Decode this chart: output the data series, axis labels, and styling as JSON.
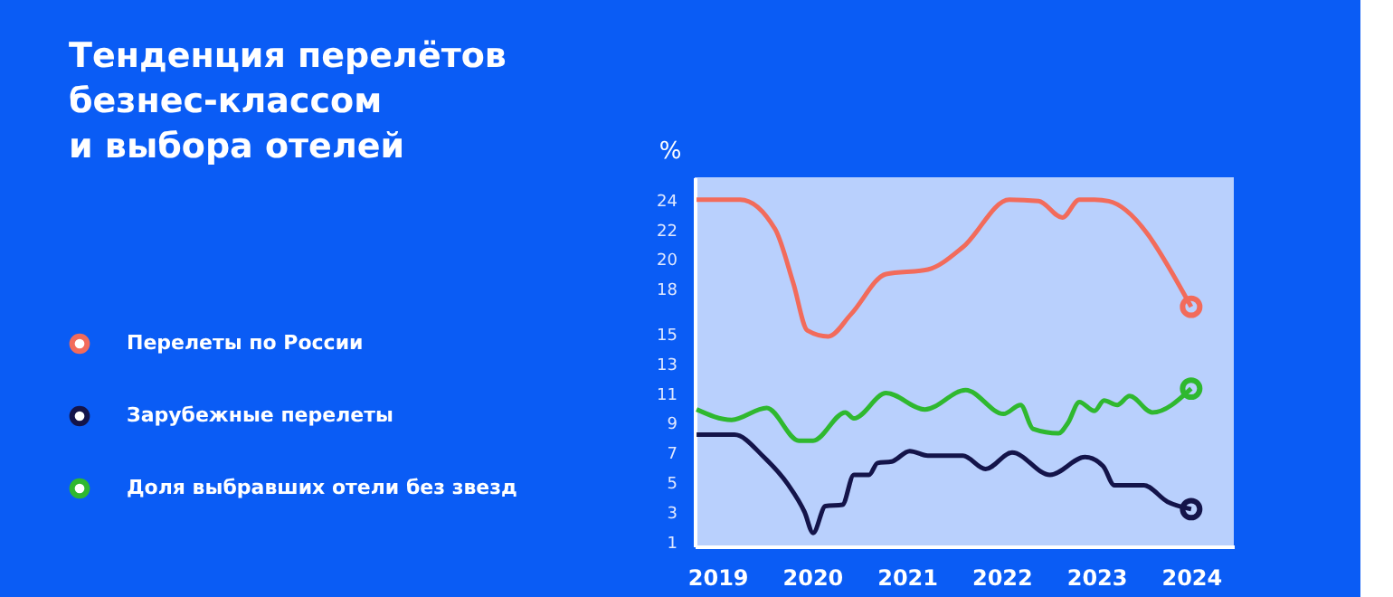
{
  "chart_data": {
    "type": "line",
    "title": [
      "Тенденция перелётов",
      "безнес-классом",
      "и выбора отелей"
    ],
    "ylabel": "%",
    "xlim": [
      2018.76,
      2024.45
    ],
    "xticks": [
      2019,
      2020,
      2021,
      2022,
      2023,
      2024
    ],
    "ylim": [
      0.7,
      25.5
    ],
    "yticks": [
      1,
      3,
      5,
      7,
      9,
      11,
      13,
      15,
      18,
      20,
      22,
      24
    ],
    "grid": false,
    "legend": "left",
    "line_style": "solid",
    "series": [
      {
        "name": "Перелеты по России",
        "color": "#f26b5b",
        "x": [
          2018.78,
          2019.24,
          2019.61,
          2019.8,
          2019.95,
          2020.17,
          2020.41,
          2020.78,
          2021.22,
          2021.59,
          2022.08,
          2022.39,
          2022.64,
          2022.82,
          2022.98,
          2023.13,
          2024
        ],
        "values": [
          24,
          24,
          22,
          18.4,
          15.2,
          14.8,
          16.3,
          19,
          19.3,
          20.8,
          24,
          23.9,
          22.8,
          24,
          24,
          23.9,
          16.8
        ]
      },
      {
        "name": "Зарубежные перелеты",
        "color": "#14144a",
        "x": [
          2018.78,
          2019.18,
          2019.49,
          2019.74,
          2019.92,
          2020.01,
          2020.14,
          2020.32,
          2020.44,
          2020.6,
          2020.69,
          2020.84,
          2021.03,
          2021.22,
          2021.59,
          2021.83,
          2022.11,
          2022.51,
          2022.88,
          2023.07,
          2023.19,
          2023.5,
          2023.75,
          2024
        ],
        "values": [
          8.2,
          8.2,
          6.7,
          4.9,
          3,
          1.6,
          3.4,
          3.5,
          5.5,
          5.5,
          6.3,
          6.4,
          7.1,
          6.8,
          6.8,
          5.9,
          7,
          5.5,
          6.7,
          6.1,
          4.8,
          4.8,
          3.7,
          3.2
        ]
      },
      {
        "name": "Доля выбравших отели без звезд",
        "color": "#2fb82f",
        "x": [
          2018.78,
          2019.15,
          2019.52,
          2019.86,
          2020.01,
          2020.35,
          2020.44,
          2020.78,
          2021.19,
          2021.62,
          2022.02,
          2022.2,
          2022.33,
          2022.6,
          2022.7,
          2022.82,
          2022.98,
          2023.08,
          2023.22,
          2023.35,
          2023.59,
          2024
        ],
        "values": [
          9.9,
          9.2,
          10,
          7.8,
          7.8,
          9.7,
          9.3,
          11,
          9.9,
          11.2,
          9.6,
          10.2,
          8.6,
          8.3,
          9,
          10.4,
          9.8,
          10.5,
          10.2,
          10.8,
          9.7,
          11.3
        ]
      }
    ]
  }
}
